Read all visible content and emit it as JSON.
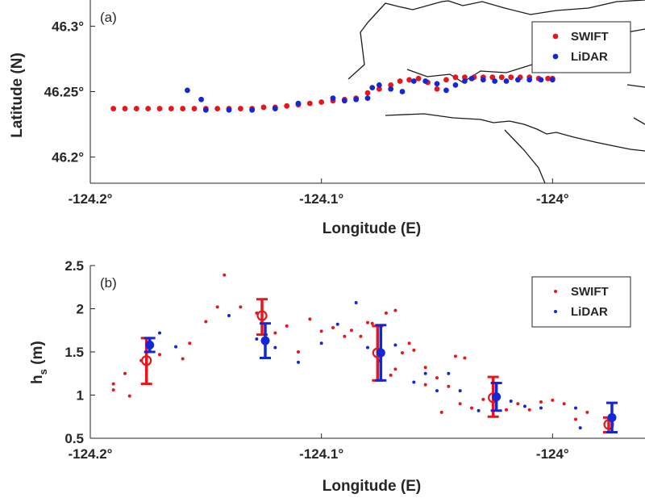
{
  "chart_data": [
    {
      "type": "scatter",
      "panel_label": "(a)",
      "xlabel": "Longitude (E)",
      "ylabel": "Latitude (N)",
      "xlim": [
        -124.2,
        -123.96
      ],
      "ylim": [
        46.18,
        46.32
      ],
      "x_ticks": [
        {
          "value": -124.2,
          "label": "-124.2°"
        },
        {
          "value": -124.1,
          "label": "-124.1°"
        },
        {
          "value": -124.0,
          "label": "-124°"
        }
      ],
      "y_ticks": [
        {
          "value": 46.2,
          "label": "46.2°"
        },
        {
          "value": 46.25,
          "label": "46.25°"
        },
        {
          "value": 46.3,
          "label": "46.3°"
        }
      ],
      "grid": false,
      "legend_position": "top-right",
      "colors": {
        "SWIFT": "#e8161b",
        "LiDAR": "#1427d8"
      },
      "series": [
        {
          "name": "SWIFT",
          "points": [
            [
              -124.19,
              46.237
            ],
            [
              -124.185,
              46.237
            ],
            [
              -124.18,
              46.237
            ],
            [
              -124.175,
              46.237
            ],
            [
              -124.17,
              46.237
            ],
            [
              -124.165,
              46.237
            ],
            [
              -124.16,
              46.237
            ],
            [
              -124.155,
              46.237
            ],
            [
              -124.15,
              46.237
            ],
            [
              -124.145,
              46.237
            ],
            [
              -124.14,
              46.237
            ],
            [
              -124.135,
              46.237
            ],
            [
              -124.13,
              46.237
            ],
            [
              -124.125,
              46.238
            ],
            [
              -124.12,
              46.238
            ],
            [
              -124.115,
              46.239
            ],
            [
              -124.11,
              46.24
            ],
            [
              -124.105,
              46.241
            ],
            [
              -124.1,
              46.242
            ],
            [
              -124.095,
              46.243
            ],
            [
              -124.09,
              46.244
            ],
            [
              -124.085,
              46.245
            ],
            [
              -124.08,
              46.249
            ],
            [
              -124.075,
              46.252
            ],
            [
              -124.07,
              46.255
            ],
            [
              -124.066,
              46.258
            ],
            [
              -124.062,
              46.259
            ],
            [
              -124.058,
              46.26
            ],
            [
              -124.054,
              46.257
            ],
            [
              -124.05,
              46.252
            ],
            [
              -124.046,
              46.259
            ],
            [
              -124.042,
              46.261
            ],
            [
              -124.038,
              46.261
            ],
            [
              -124.034,
              46.261
            ],
            [
              -124.03,
              46.261
            ],
            [
              -124.026,
              46.261
            ],
            [
              -124.022,
              46.261
            ],
            [
              -124.018,
              46.261
            ],
            [
              -124.014,
              46.261
            ],
            [
              -124.01,
              46.261
            ],
            [
              -124.006,
              46.26
            ],
            [
              -124.002,
              46.26
            ],
            [
              -124.0,
              46.26
            ]
          ]
        },
        {
          "name": "LiDAR",
          "points": [
            [
              -124.158,
              46.251
            ],
            [
              -124.152,
              46.244
            ],
            [
              -124.15,
              46.236
            ],
            [
              -124.14,
              46.236
            ],
            [
              -124.13,
              46.236
            ],
            [
              -124.12,
              46.237
            ],
            [
              -124.11,
              46.241
            ],
            [
              -124.095,
              46.245
            ],
            [
              -124.09,
              46.243
            ],
            [
              -124.085,
              46.244
            ],
            [
              -124.08,
              46.245
            ],
            [
              -124.078,
              46.253
            ],
            [
              -124.075,
              46.255
            ],
            [
              -124.07,
              46.252
            ],
            [
              -124.065,
              46.25
            ],
            [
              -124.06,
              46.258
            ],
            [
              -124.055,
              46.258
            ],
            [
              -124.05,
              46.256
            ],
            [
              -124.046,
              46.251
            ],
            [
              -124.042,
              46.255
            ],
            [
              -124.038,
              46.258
            ],
            [
              -124.035,
              46.26
            ],
            [
              -124.03,
              46.259
            ],
            [
              -124.025,
              46.258
            ],
            [
              -124.02,
              46.258
            ],
            [
              -124.015,
              46.259
            ],
            [
              -124.01,
              46.259
            ],
            [
              -124.005,
              46.259
            ],
            [
              -124.0,
              46.259
            ]
          ]
        }
      ]
    },
    {
      "type": "scatter",
      "panel_label": "(b)",
      "xlabel": "Longitude (E)",
      "ylabel": "h",
      "ylabel_sub": "s",
      "ylabel_unit": "(m)",
      "xlim": [
        -124.2,
        -123.96
      ],
      "ylim": [
        0.5,
        2.5
      ],
      "x_ticks": [
        {
          "value": -124.2,
          "label": "-124.2°"
        },
        {
          "value": -124.1,
          "label": "-124.1°"
        },
        {
          "value": -124.0,
          "label": "-124°"
        }
      ],
      "y_ticks": [
        {
          "value": 0.5,
          "label": "0.5"
        },
        {
          "value": 1.0,
          "label": "1"
        },
        {
          "value": 1.5,
          "label": "1.5"
        },
        {
          "value": 2.0,
          "label": "2"
        },
        {
          "value": 2.5,
          "label": "2.5"
        }
      ],
      "grid": false,
      "legend_position": "top-right",
      "colors": {
        "SWIFT": "#e8161b",
        "LiDAR": "#1427d8"
      },
      "series": [
        {
          "name": "SWIFT",
          "points": [
            [
              -124.19,
              1.13
            ],
            [
              -124.19,
              1.06
            ],
            [
              -124.185,
              1.25
            ],
            [
              -124.183,
              0.99
            ],
            [
              -124.178,
              1.4
            ],
            [
              -124.17,
              1.47
            ],
            [
              -124.16,
              1.42
            ],
            [
              -124.157,
              1.6
            ],
            [
              -124.15,
              1.85
            ],
            [
              -124.145,
              2.02
            ],
            [
              -124.142,
              2.39
            ],
            [
              -124.135,
              2.02
            ],
            [
              -124.128,
              1.95
            ],
            [
              -124.12,
              1.72
            ],
            [
              -124.115,
              1.8
            ],
            [
              -124.11,
              1.5
            ],
            [
              -124.105,
              1.88
            ],
            [
              -124.1,
              1.74
            ],
            [
              -124.095,
              1.78
            ],
            [
              -124.09,
              1.68
            ],
            [
              -124.087,
              1.75
            ],
            [
              -124.083,
              1.68
            ],
            [
              -124.08,
              1.84
            ],
            [
              -124.078,
              1.83
            ],
            [
              -124.072,
              1.95
            ],
            [
              -124.068,
              1.98
            ],
            [
              -124.065,
              1.49
            ],
            [
              -124.062,
              1.6
            ],
            [
              -124.06,
              1.52
            ],
            [
              -124.055,
              1.32
            ],
            [
              -124.05,
              1.2
            ],
            [
              -124.045,
              1.1
            ],
            [
              -124.04,
              0.9
            ],
            [
              -124.035,
              0.85
            ],
            [
              -124.03,
              0.95
            ],
            [
              -124.025,
              1.0
            ],
            [
              -124.02,
              0.83
            ],
            [
              -124.015,
              0.9
            ],
            [
              -124.01,
              0.83
            ],
            [
              -124.005,
              0.92
            ],
            [
              -124.0,
              0.94
            ],
            [
              -123.995,
              0.9
            ],
            [
              -123.99,
              0.72
            ],
            [
              -123.985,
              0.8
            ],
            [
              -124.042,
              1.45
            ],
            [
              -124.038,
              1.43
            ],
            [
              -124.048,
              0.8
            ],
            [
              -124.055,
              1.12
            ],
            [
              -124.068,
              1.3
            ],
            [
              -124.07,
              1.23
            ]
          ]
        },
        {
          "name": "LiDAR",
          "points": [
            [
              -124.17,
              1.72
            ],
            [
              -124.163,
              1.56
            ],
            [
              -124.14,
              1.92
            ],
            [
              -124.128,
              1.65
            ],
            [
              -124.12,
              1.55
            ],
            [
              -124.11,
              1.38
            ],
            [
              -124.1,
              1.6
            ],
            [
              -124.093,
              1.82
            ],
            [
              -124.085,
              2.07
            ],
            [
              -124.08,
              1.55
            ],
            [
              -124.075,
              1.4
            ],
            [
              -124.068,
              1.58
            ],
            [
              -124.06,
              1.15
            ],
            [
              -124.055,
              1.25
            ],
            [
              -124.05,
              1.05
            ],
            [
              -124.045,
              1.25
            ],
            [
              -124.04,
              1.05
            ],
            [
              -124.032,
              0.82
            ],
            [
              -124.025,
              0.95
            ],
            [
              -124.018,
              0.93
            ],
            [
              -124.012,
              0.87
            ],
            [
              -124.005,
              0.85
            ],
            [
              -123.99,
              0.85
            ],
            [
              -123.988,
              0.62
            ]
          ]
        }
      ],
      "binned": [
        {
          "name": "SWIFT",
          "marker": "circle-open",
          "points": [
            {
              "x": -124.175,
              "y": 1.4,
              "lo": 1.13,
              "hi": 1.66
            },
            {
              "x": -124.125,
              "y": 1.92,
              "lo": 1.7,
              "hi": 2.11
            },
            {
              "x": -124.075,
              "y": 1.49,
              "lo": 1.17,
              "hi": 1.8
            },
            {
              "x": -124.025,
              "y": 0.97,
              "lo": 0.75,
              "hi": 1.21
            },
            {
              "x": -123.975,
              "y": 0.66,
              "lo": 0.57,
              "hi": 0.74
            }
          ]
        },
        {
          "name": "LiDAR",
          "marker": "circle-filled",
          "points": [
            {
              "x": -124.175,
              "y": 1.58,
              "lo": 1.5,
              "hi": 1.66
            },
            {
              "x": -124.125,
              "y": 1.63,
              "lo": 1.43,
              "hi": 1.83
            },
            {
              "x": -124.075,
              "y": 1.49,
              "lo": 1.17,
              "hi": 1.81
            },
            {
              "x": -124.025,
              "y": 0.98,
              "lo": 0.82,
              "hi": 1.14
            },
            {
              "x": -123.975,
              "y": 0.74,
              "lo": 0.57,
              "hi": 0.91
            }
          ]
        }
      ]
    }
  ]
}
